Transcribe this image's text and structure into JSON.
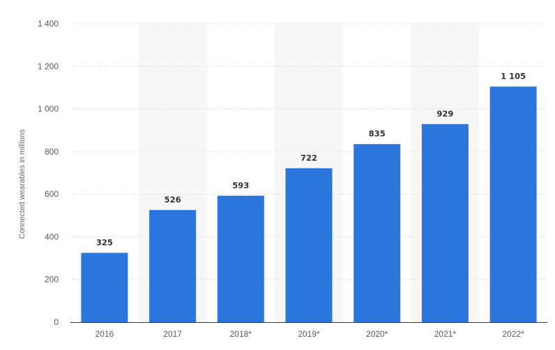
{
  "chart_data": {
    "type": "bar",
    "categories": [
      "2016",
      "2017",
      "2018*",
      "2019*",
      "2020*",
      "2021*",
      "2022*"
    ],
    "values": [
      325,
      526,
      593,
      722,
      835,
      929,
      1105
    ],
    "value_labels": [
      "325",
      "526",
      "593",
      "722",
      "835",
      "929",
      "1 105"
    ],
    "title": "",
    "xlabel": "",
    "ylabel": "Connected wearables in millions",
    "ylim": [
      0,
      1400
    ],
    "yticks": [
      0,
      200,
      400,
      600,
      800,
      1000,
      1200,
      1400
    ],
    "ytick_labels": [
      "0",
      "200",
      "400",
      "600",
      "800",
      "1 000",
      "1 200",
      "1 400"
    ],
    "grid": true,
    "alternating_band_color": "#f7f7f7",
    "bar_color": "#2a76dd",
    "legend": "none"
  }
}
